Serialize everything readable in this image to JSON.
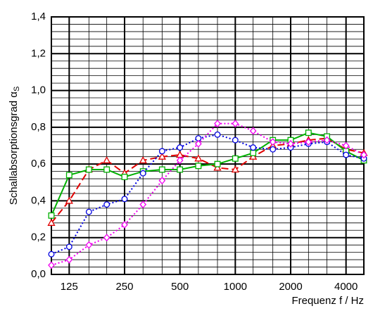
{
  "chart_data": {
    "type": "line",
    "xlabel": "Frequenz f / Hz",
    "ylabel": "Schallabsorptionsgrad α",
    "ylabel_subscript": "S",
    "xscale": "log",
    "grid": true,
    "x": [
      100,
      125,
      160,
      200,
      250,
      315,
      400,
      500,
      630,
      800,
      1000,
      1250,
      1600,
      2000,
      2500,
      3150,
      4000,
      5000
    ],
    "xlim": [
      100,
      5000
    ],
    "xticks": [
      125,
      250,
      500,
      1000,
      2000,
      4000
    ],
    "ylim": [
      0,
      1.4
    ],
    "yticks": [
      {
        "value": 0,
        "label": "0,0"
      },
      {
        "value": 0.2,
        "label": "0,2"
      },
      {
        "value": 0.4,
        "label": "0,4"
      },
      {
        "value": 0.6,
        "label": "0,6"
      },
      {
        "value": 0.8,
        "label": "0,8"
      },
      {
        "value": 1.0,
        "label": "1,0"
      },
      {
        "value": 1.2,
        "label": "1,2"
      },
      {
        "value": 1.4,
        "label": "1,4"
      }
    ],
    "series": [
      {
        "color": "#e00000",
        "dash": "10,5",
        "marker": "triangle",
        "values": [
          0.28,
          0.4,
          0.57,
          0.62,
          0.55,
          0.62,
          0.64,
          0.65,
          0.63,
          0.58,
          0.57,
          0.64,
          0.7,
          0.71,
          0.73,
          0.74,
          0.68,
          0.66
        ]
      },
      {
        "color": "#00b000",
        "dash": "",
        "marker": "square",
        "values": [
          0.32,
          0.54,
          0.57,
          0.57,
          0.53,
          0.56,
          0.57,
          0.57,
          0.59,
          0.6,
          0.63,
          0.66,
          0.73,
          0.73,
          0.77,
          0.75,
          0.67,
          0.62
        ]
      },
      {
        "color": "#0000e0",
        "dash": "2,3",
        "marker": "circle",
        "values": [
          0.11,
          0.15,
          0.34,
          0.38,
          0.41,
          0.55,
          0.67,
          0.69,
          0.74,
          0.76,
          0.73,
          0.69,
          0.68,
          0.69,
          0.71,
          0.72,
          0.65,
          0.63
        ]
      },
      {
        "color": "#f000f0",
        "dash": "2,3",
        "marker": "diamond",
        "values": [
          0.05,
          0.08,
          0.16,
          0.2,
          0.27,
          0.38,
          0.51,
          0.62,
          0.71,
          0.82,
          0.82,
          0.78,
          0.72,
          0.71,
          0.72,
          0.73,
          0.7,
          0.65
        ]
      }
    ]
  }
}
